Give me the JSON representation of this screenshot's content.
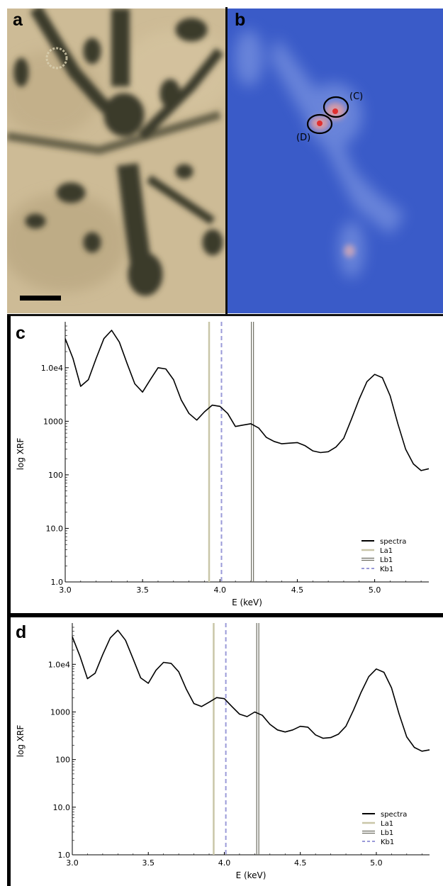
{
  "panels": {
    "a": {
      "label": "a"
    },
    "b": {
      "label": "b",
      "regions": [
        {
          "label": "(C)"
        },
        {
          "label": "(D)"
        }
      ]
    },
    "c": {
      "label": "c"
    },
    "d": {
      "label": "d"
    }
  },
  "colors": {
    "map_background": "#3a5bc8",
    "spectra": "#000000",
    "La1": "#c9c6a8",
    "Lb1": "#6e6e62",
    "Kb1": "#9a9ad8"
  },
  "chart_data": [
    {
      "type": "line",
      "panel": "c",
      "xlabel": "E (keV)",
      "ylabel": "log XRF",
      "xlim": [
        3.0,
        5.35
      ],
      "ylim": [
        1.0,
        60000
      ],
      "yscale": "log",
      "xticks": [
        "3.0",
        "3.5",
        "4.0",
        "4.5",
        "5.0"
      ],
      "yticks": [
        "1.0",
        "10.0",
        "100",
        "1000",
        "1.0e4"
      ],
      "legend": [
        "spectra",
        "La1",
        "Lb1",
        "Kb1"
      ],
      "legend_position": "bottom-right",
      "lines": {
        "La1": 3.93,
        "Lb1": 4.21,
        "Kb1": 4.01
      },
      "series": [
        {
          "name": "spectra",
          "x": [
            3.0,
            3.05,
            3.1,
            3.15,
            3.2,
            3.25,
            3.3,
            3.35,
            3.4,
            3.45,
            3.5,
            3.55,
            3.6,
            3.65,
            3.7,
            3.75,
            3.8,
            3.85,
            3.9,
            3.95,
            4.0,
            4.05,
            4.1,
            4.15,
            4.2,
            4.25,
            4.3,
            4.35,
            4.4,
            4.45,
            4.5,
            4.55,
            4.6,
            4.65,
            4.7,
            4.75,
            4.8,
            4.85,
            4.9,
            4.95,
            5.0,
            5.05,
            5.1,
            5.15,
            5.2,
            5.25,
            5.3,
            5.35
          ],
          "values": [
            35000,
            15000,
            4500,
            6000,
            15000,
            35000,
            50000,
            30000,
            12000,
            5000,
            3500,
            6000,
            10000,
            9500,
            6000,
            2500,
            1400,
            1050,
            1500,
            2000,
            1900,
            1400,
            800,
            850,
            900,
            750,
            500,
            420,
            380,
            390,
            400,
            350,
            280,
            260,
            270,
            330,
            480,
            1100,
            2600,
            5500,
            7500,
            6500,
            3000,
            900,
            300,
            160,
            120,
            130
          ]
        }
      ]
    },
    {
      "type": "line",
      "panel": "d",
      "xlabel": "E (keV)",
      "ylabel": "log XRF",
      "xlim": [
        3.0,
        5.35
      ],
      "ylim": [
        1.0,
        60000
      ],
      "yscale": "log",
      "xticks": [
        "3.0",
        "3.5",
        "4.0",
        "4.5",
        "5.0"
      ],
      "yticks": [
        "1.0",
        "10.0",
        "100",
        "1000",
        "1.0e4"
      ],
      "legend": [
        "spectra",
        "La1",
        "Lb1",
        "Kb1"
      ],
      "legend_position": "bottom-right",
      "lines": {
        "La1": 3.93,
        "Lb1": 4.22,
        "Kb1": 4.01
      },
      "series": [
        {
          "name": "spectra",
          "x": [
            3.0,
            3.05,
            3.1,
            3.15,
            3.2,
            3.25,
            3.3,
            3.35,
            3.4,
            3.45,
            3.5,
            3.55,
            3.6,
            3.65,
            3.7,
            3.75,
            3.8,
            3.85,
            3.9,
            3.95,
            4.0,
            4.05,
            4.1,
            4.15,
            4.2,
            4.25,
            4.3,
            4.35,
            4.4,
            4.45,
            4.5,
            4.55,
            4.6,
            4.65,
            4.7,
            4.75,
            4.8,
            4.85,
            4.9,
            4.95,
            5.0,
            5.05,
            5.1,
            5.15,
            5.2,
            5.25,
            5.3,
            5.35
          ],
          "values": [
            38000,
            15000,
            5000,
            6500,
            16000,
            36000,
            52000,
            32000,
            13000,
            5200,
            4000,
            7500,
            11000,
            10500,
            7000,
            3000,
            1500,
            1300,
            1600,
            2000,
            1900,
            1300,
            900,
            800,
            1000,
            850,
            550,
            420,
            380,
            420,
            500,
            480,
            330,
            280,
            290,
            340,
            500,
            1100,
            2600,
            5500,
            8000,
            6800,
            3200,
            900,
            300,
            180,
            150,
            160
          ]
        }
      ]
    }
  ]
}
